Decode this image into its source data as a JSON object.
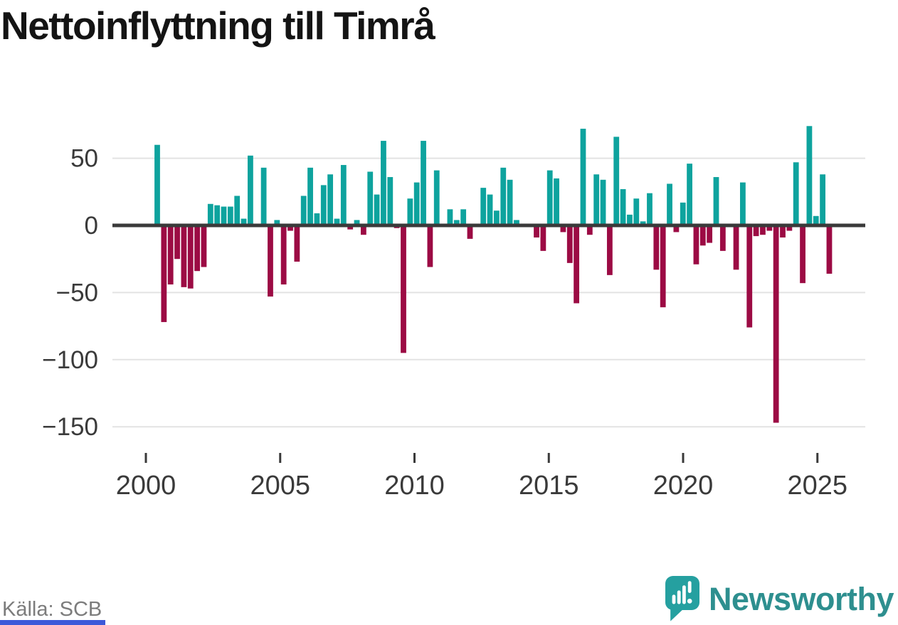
{
  "page": {
    "title": "Nettoinflyttning till Timrå",
    "source": "Källa: SCB",
    "brand": "Newsworthy"
  },
  "icons": {
    "brand_icon": "newsworthy-pin-bar-chart-icon"
  },
  "colors": {
    "positive": "#0ea39e",
    "negative": "#9c0b44",
    "axis": "#3a3a3a",
    "grid": "#e3e3e3",
    "tick_text": "#3a3a3a",
    "title": "#141414",
    "source_text": "#7c7c7c",
    "brand_text": "#2e8f8f",
    "brand_icon": "#25a0a0",
    "bottom_strip": "#3c59d9"
  },
  "chart_data": {
    "type": "bar",
    "title": "Nettoinflyttning till Timrå",
    "x": [
      "2000-Q2",
      "2000-Q3",
      "2000-Q4",
      "2001-Q1",
      "2001-Q2",
      "2001-Q3",
      "2001-Q4",
      "2002-Q1",
      "2002-Q2",
      "2002-Q3",
      "2002-Q4",
      "2003-Q1",
      "2003-Q2",
      "2003-Q3",
      "2003-Q4",
      "2004-Q1",
      "2004-Q2",
      "2004-Q3",
      "2004-Q4",
      "2005-Q1",
      "2005-Q2",
      "2005-Q3",
      "2005-Q4",
      "2006-Q1",
      "2006-Q2",
      "2006-Q3",
      "2006-Q4",
      "2007-Q1",
      "2007-Q2",
      "2007-Q3",
      "2007-Q4",
      "2008-Q1",
      "2008-Q2",
      "2008-Q3",
      "2008-Q4",
      "2009-Q1",
      "2009-Q2",
      "2009-Q3",
      "2009-Q4",
      "2010-Q1",
      "2010-Q2",
      "2010-Q3",
      "2010-Q4",
      "2011-Q1",
      "2011-Q2",
      "2011-Q3",
      "2011-Q4",
      "2012-Q1",
      "2012-Q2",
      "2012-Q3",
      "2012-Q4",
      "2013-Q1",
      "2013-Q2",
      "2013-Q3",
      "2013-Q4",
      "2014-Q1",
      "2014-Q2",
      "2014-Q3",
      "2014-Q4",
      "2015-Q1",
      "2015-Q2",
      "2015-Q3",
      "2015-Q4",
      "2016-Q1",
      "2016-Q2",
      "2016-Q3",
      "2016-Q4",
      "2017-Q1",
      "2017-Q2",
      "2017-Q3",
      "2017-Q4",
      "2018-Q1",
      "2018-Q2",
      "2018-Q3",
      "2018-Q4",
      "2019-Q1",
      "2019-Q2",
      "2019-Q3",
      "2019-Q4",
      "2020-Q1",
      "2020-Q2",
      "2020-Q3",
      "2020-Q4",
      "2021-Q1",
      "2021-Q2",
      "2021-Q3",
      "2021-Q4",
      "2022-Q1",
      "2022-Q2",
      "2022-Q3",
      "2022-Q4",
      "2023-Q1",
      "2023-Q2",
      "2023-Q3",
      "2023-Q4",
      "2024-Q1",
      "2024-Q2",
      "2024-Q3",
      "2024-Q4",
      "2025-Q1",
      "2025-Q2",
      "2025-Q3"
    ],
    "values": [
      60,
      -72,
      -44,
      -25,
      -46,
      -47,
      -34,
      -31,
      16,
      15,
      14,
      14,
      22,
      5,
      52,
      0,
      43,
      -53,
      4,
      -44,
      -4,
      -27,
      22,
      43,
      9,
      30,
      38,
      5,
      45,
      -3,
      4,
      -7,
      40,
      23,
      63,
      36,
      -2,
      -95,
      20,
      32,
      63,
      -31,
      41,
      0,
      12,
      4,
      12,
      -10,
      0,
      28,
      23,
      11,
      43,
      34,
      4,
      0,
      0,
      -9,
      -19,
      41,
      35,
      -5,
      -28,
      -58,
      72,
      -7,
      38,
      34,
      -37,
      66,
      27,
      8,
      20,
      3,
      24,
      -33,
      -61,
      31,
      -5,
      17,
      46,
      -29,
      -15,
      -13,
      36,
      -19,
      0,
      -33,
      32,
      -76,
      -8,
      -7,
      -4,
      -147,
      -9,
      -4,
      47,
      -43,
      74,
      7,
      38,
      -36
    ],
    "yticks": [
      50,
      0,
      -50,
      -100,
      -150
    ],
    "ytick_labels": [
      "50",
      "0",
      "−50",
      "−100",
      "−150"
    ],
    "xticks": [
      2000,
      2005,
      2010,
      2015,
      2020,
      2025
    ],
    "xtick_labels": [
      "2000",
      "2005",
      "2010",
      "2015",
      "2020",
      "2025"
    ],
    "ylim": [
      -155,
      80
    ],
    "grid": "horizontal",
    "legend": "none"
  }
}
